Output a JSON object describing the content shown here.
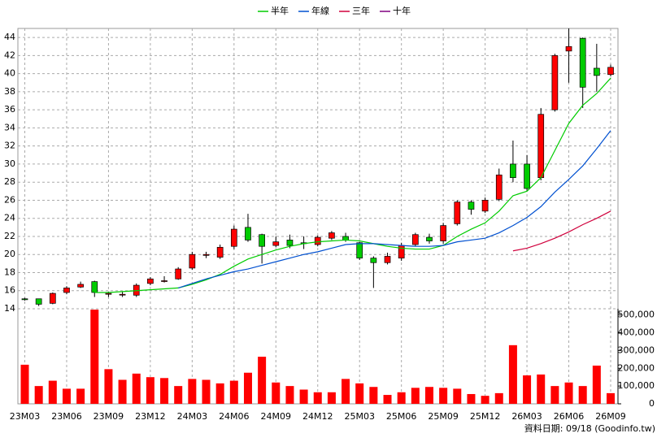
{
  "chart_data": {
    "type": "candlestick",
    "categories": [
      "23M03",
      null,
      null,
      "23M06",
      null,
      null,
      "23M09",
      null,
      null,
      "23M12",
      null,
      null,
      "24M03",
      null,
      null,
      "24M06",
      null,
      null,
      "24M09",
      null,
      null,
      "24M12",
      null,
      null,
      "25M03",
      null,
      null,
      "25M06",
      null,
      null,
      "25M09",
      null,
      null,
      "25M12",
      null,
      null,
      "26M03",
      null,
      null,
      "26M06",
      null,
      null,
      "26M09"
    ],
    "open": [
      15.1,
      15.1,
      14.6,
      15.8,
      16.4,
      17.0,
      15.6,
      15.6,
      15.5,
      16.8,
      17.1,
      17.3,
      18.5,
      19.9,
      19.7,
      20.9,
      23.0,
      22.2,
      21.0,
      21.6,
      21.3,
      21.1,
      21.8,
      22.0,
      21.3,
      19.6,
      19.1,
      19.6,
      21.1,
      21.9,
      21.5,
      23.4,
      25.8,
      24.8,
      26.1,
      30.0,
      30.0,
      28.5,
      36.0,
      42.5,
      43.9,
      40.6,
      39.9
    ],
    "high": [
      15.2,
      15.1,
      15.8,
      16.5,
      17.0,
      17.1,
      15.9,
      15.9,
      16.8,
      17.5,
      17.6,
      18.6,
      20.3,
      20.3,
      21.1,
      23.2,
      24.5,
      22.3,
      22.0,
      22.2,
      22.0,
      22.1,
      22.6,
      22.4,
      21.4,
      19.8,
      20.2,
      21.3,
      22.4,
      22.3,
      23.5,
      26.0,
      26.0,
      26.3,
      29.5,
      32.6,
      31.0,
      36.2,
      42.2,
      45.0,
      44.0,
      43.3,
      41.0
    ],
    "low": [
      14.9,
      14.3,
      14.5,
      15.6,
      16.3,
      15.3,
      15.3,
      15.3,
      15.3,
      16.6,
      16.9,
      17.2,
      18.3,
      19.6,
      19.5,
      20.6,
      21.4,
      19.0,
      20.8,
      20.7,
      20.6,
      20.9,
      21.6,
      21.4,
      19.4,
      16.3,
      18.9,
      19.3,
      20.9,
      21.2,
      21.2,
      23.2,
      24.4,
      24.6,
      25.9,
      28.0,
      27.0,
      28.2,
      35.8,
      39.0,
      36.2,
      38.0,
      39.7
    ],
    "close": [
      15.0,
      14.5,
      15.7,
      16.3,
      16.7,
      15.8,
      15.7,
      15.6,
      16.6,
      17.3,
      17.1,
      18.4,
      20.0,
      20.0,
      20.8,
      22.8,
      21.6,
      20.9,
      21.4,
      21.0,
      21.2,
      21.9,
      22.4,
      21.6,
      19.6,
      19.1,
      19.8,
      21.0,
      22.2,
      21.5,
      23.2,
      25.8,
      25.0,
      26.0,
      28.8,
      28.5,
      27.3,
      35.5,
      42.0,
      43.0,
      38.5,
      39.8,
      40.7
    ],
    "up_color": "#ff0000",
    "down_color": "#00cc00",
    "ylim": [
      14,
      45
    ],
    "yticks": [
      14,
      16,
      18,
      20,
      22,
      24,
      26,
      28,
      30,
      32,
      34,
      36,
      38,
      40,
      42,
      44
    ],
    "grid": true,
    "series": [
      {
        "name": "半年",
        "color": "#00cc00",
        "values": [
          null,
          null,
          null,
          null,
          null,
          15.8,
          15.8,
          15.9,
          16.0,
          16.1,
          16.2,
          16.3,
          16.7,
          17.2,
          17.8,
          18.7,
          19.5,
          20.0,
          20.5,
          20.9,
          21.2,
          21.4,
          21.5,
          21.6,
          21.5,
          21.2,
          20.9,
          20.7,
          20.6,
          20.6,
          21.0,
          22.0,
          22.8,
          23.5,
          24.8,
          26.5,
          27.0,
          28.5,
          31.5,
          34.5,
          36.5,
          37.8,
          39.5
        ]
      },
      {
        "name": "年線",
        "color": "#0050d0",
        "values": [
          null,
          null,
          null,
          null,
          null,
          null,
          null,
          null,
          null,
          null,
          null,
          16.3,
          16.8,
          17.3,
          17.7,
          18.1,
          18.4,
          18.8,
          19.2,
          19.6,
          20.0,
          20.3,
          20.7,
          21.1,
          21.2,
          21.2,
          21.1,
          21.0,
          20.9,
          20.9,
          21.0,
          21.4,
          21.6,
          21.8,
          22.4,
          23.2,
          24.1,
          25.3,
          26.9,
          28.3,
          29.8,
          31.7,
          33.7
        ]
      },
      {
        "name": "三年",
        "color": "#d0003c",
        "values": [
          null,
          null,
          null,
          null,
          null,
          null,
          null,
          null,
          null,
          null,
          null,
          null,
          null,
          null,
          null,
          null,
          null,
          null,
          null,
          null,
          null,
          null,
          null,
          null,
          null,
          null,
          null,
          null,
          null,
          null,
          null,
          null,
          null,
          null,
          null,
          20.4,
          20.7,
          21.2,
          21.8,
          22.5,
          23.3,
          24.0,
          24.8
        ]
      },
      {
        "name": "十年",
        "color": "#800080",
        "values": [
          null,
          null,
          null,
          null,
          null,
          null,
          null,
          null,
          null,
          null,
          null,
          null,
          null,
          null,
          null,
          null,
          null,
          null,
          null,
          null,
          null,
          null,
          null,
          null,
          null,
          null,
          null,
          null,
          null,
          null,
          null,
          null,
          null,
          null,
          null,
          null,
          null,
          null,
          null,
          null,
          null,
          null,
          null
        ]
      }
    ],
    "volume": {
      "color": "#ff0000",
      "values": [
        220000,
        100000,
        130000,
        85000,
        85000,
        530000,
        195000,
        135000,
        170000,
        150000,
        145000,
        100000,
        140000,
        135000,
        115000,
        130000,
        175000,
        265000,
        120000,
        100000,
        80000,
        65000,
        65000,
        140000,
        115000,
        95000,
        50000,
        65000,
        90000,
        95000,
        90000,
        85000,
        55000,
        45000,
        60000,
        330000,
        160000,
        165000,
        100000,
        120000,
        100000,
        215000,
        60000
      ],
      "ylim": [
        0,
        535000
      ],
      "yticks": [
        0,
        {
          "value": 100000,
          "label": "100,000"
        },
        {
          "value": 200000,
          "label": "200,000"
        },
        {
          "value": 300000,
          "label": "300,000"
        },
        {
          "value": 400000,
          "label": "400,000"
        },
        {
          "value": 500000,
          "label": "500,000"
        }
      ]
    },
    "source": "資料日期: 09/18  (Goodinfo.tw)"
  }
}
